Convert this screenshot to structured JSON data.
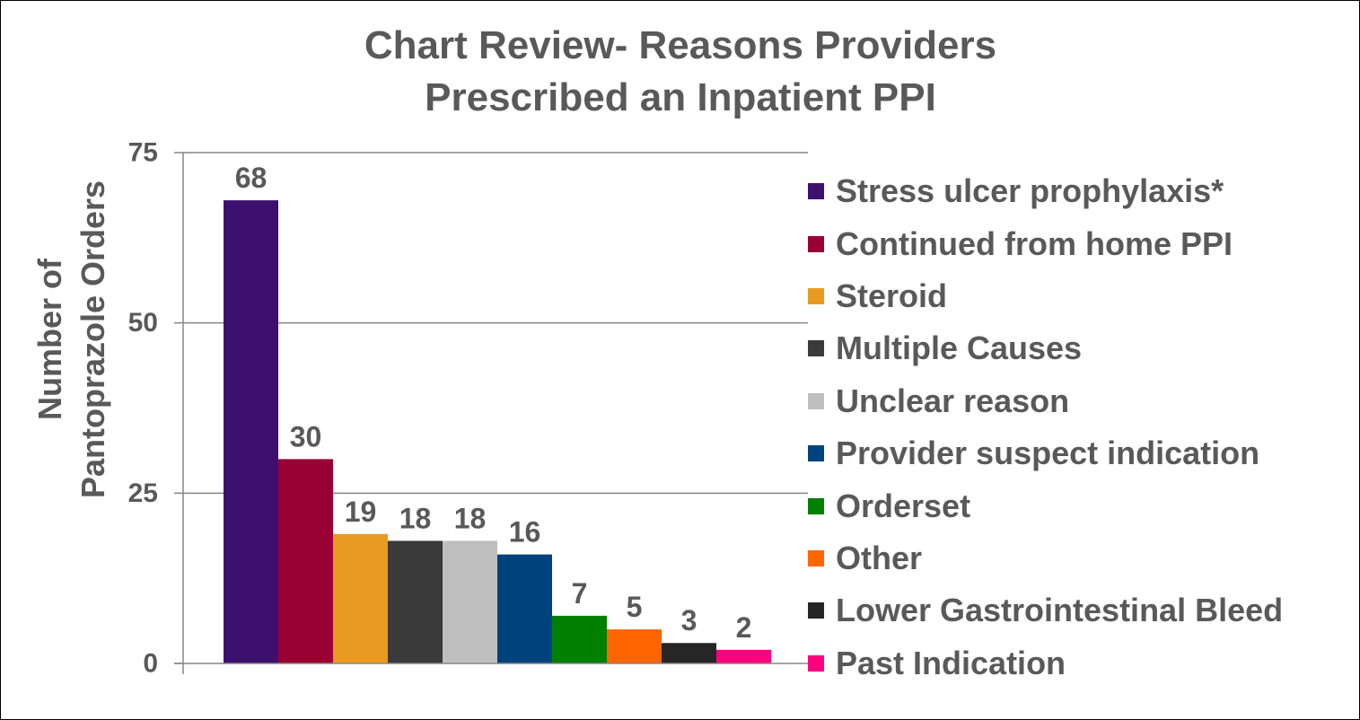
{
  "chart_data": {
    "type": "bar",
    "title": [
      "Chart Review- Reasons Providers",
      "Prescribed an Inpatient PPI"
    ],
    "ylabel": [
      "Number of",
      "Pantoprazole Orders"
    ],
    "xlabel": "",
    "ylim": [
      0,
      75
    ],
    "yticks": [
      0,
      25,
      50,
      75
    ],
    "grid": true,
    "legend_position": "right",
    "series": [
      {
        "name": "Stress ulcer prophylaxis*",
        "value": 68,
        "color": "#3d1070"
      },
      {
        "name": "Continued from home PPI",
        "value": 30,
        "color": "#990033"
      },
      {
        "name": "Steroid",
        "value": 19,
        "color": "#e89a20"
      },
      {
        "name": "Multiple Causes",
        "value": 18,
        "color": "#3a3a3a"
      },
      {
        "name": "Unclear reason",
        "value": 18,
        "color": "#bfbfbf"
      },
      {
        "name": "Provider suspect indication",
        "value": 16,
        "color": "#00427e"
      },
      {
        "name": "Orderset",
        "value": 7,
        "color": "#008000"
      },
      {
        "name": "Other",
        "value": 5,
        "color": "#ff6600"
      },
      {
        "name": "Lower Gastrointestinal Bleed",
        "value": 3,
        "color": "#262626"
      },
      {
        "name": "Past Indication",
        "value": 2,
        "color": "#ff0080"
      }
    ]
  }
}
